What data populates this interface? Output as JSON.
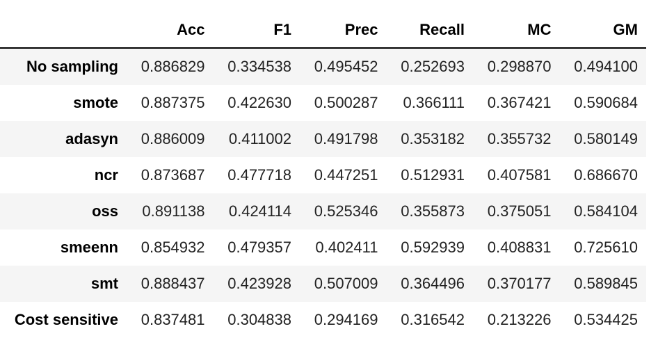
{
  "table": {
    "columns": [
      "",
      "Acc",
      "F1",
      "Prec",
      "Recall",
      "MC",
      "GM"
    ],
    "rows": [
      {
        "label": "No sampling",
        "values": [
          "0.886829",
          "0.334538",
          "0.495452",
          "0.252693",
          "0.298870",
          "0.494100"
        ]
      },
      {
        "label": "smote",
        "values": [
          "0.887375",
          "0.422630",
          "0.500287",
          "0.366111",
          "0.367421",
          "0.590684"
        ]
      },
      {
        "label": "adasyn",
        "values": [
          "0.886009",
          "0.411002",
          "0.491798",
          "0.353182",
          "0.355732",
          "0.580149"
        ]
      },
      {
        "label": "ncr",
        "values": [
          "0.873687",
          "0.477718",
          "0.447251",
          "0.512931",
          "0.407581",
          "0.686670"
        ]
      },
      {
        "label": "oss",
        "values": [
          "0.891138",
          "0.424114",
          "0.525346",
          "0.355873",
          "0.375051",
          "0.584104"
        ]
      },
      {
        "label": "smeenn",
        "values": [
          "0.854932",
          "0.479357",
          "0.402411",
          "0.592939",
          "0.408831",
          "0.725610"
        ]
      },
      {
        "label": "smt",
        "values": [
          "0.888437",
          "0.423928",
          "0.507009",
          "0.364496",
          "0.370177",
          "0.589845"
        ]
      },
      {
        "label": "Cost sensitive",
        "values": [
          "0.837481",
          "0.304838",
          "0.294169",
          "0.316542",
          "0.213226",
          "0.534425"
        ]
      }
    ]
  },
  "colors": {
    "stripe": "#f5f5f5",
    "header_rule": "#000000",
    "text": "#000000"
  }
}
